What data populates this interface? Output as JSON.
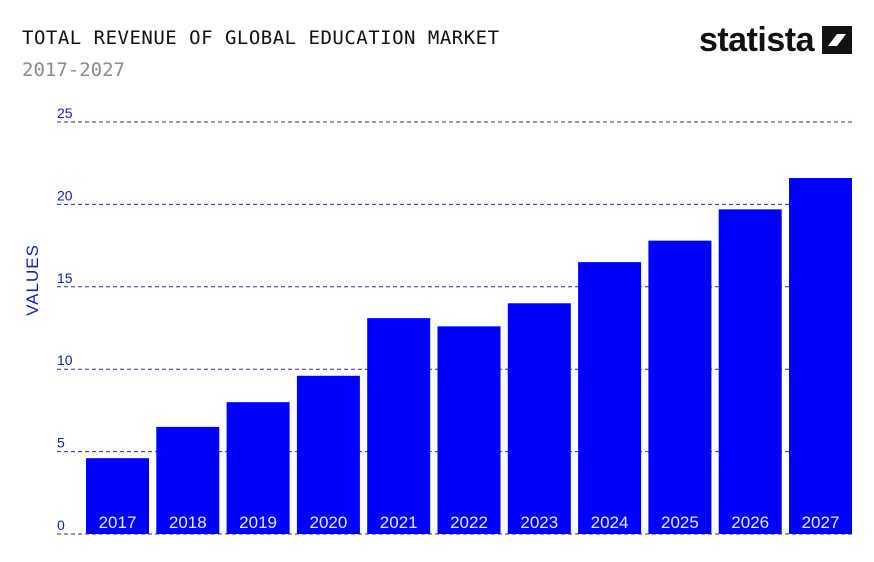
{
  "header": {
    "title": "TOTAL REVENUE OF GLOBAL EDUCATION MARKET",
    "subtitle": "2017-2027",
    "logo_text": "statista",
    "logo_icon": "statista-logo-icon"
  },
  "colors": {
    "bar": "#0000FF",
    "grid": "#2d2d9c",
    "axis_text": "#1515d8",
    "bar_label": "#e9e9ff"
  },
  "chart_data": {
    "type": "bar",
    "title": "TOTAL REVENUE OF GLOBAL EDUCATION MARKET",
    "subtitle": "2017-2027",
    "xlabel": "",
    "ylabel": "VALUES",
    "categories": [
      "2017",
      "2018",
      "2019",
      "2020",
      "2021",
      "2022",
      "2023",
      "2024",
      "2025",
      "2026",
      "2027"
    ],
    "values": [
      4.6,
      6.5,
      8.0,
      9.6,
      13.1,
      12.6,
      14.0,
      16.5,
      17.8,
      19.7,
      21.6
    ],
    "ylim": [
      0,
      25
    ],
    "yticks": [
      "0",
      "5",
      "10",
      "15",
      "20",
      "25"
    ],
    "grid": true,
    "grid_style": "dashed",
    "legend": "none"
  }
}
